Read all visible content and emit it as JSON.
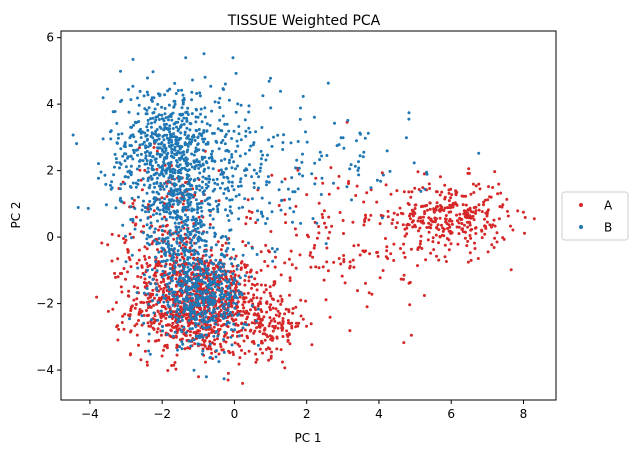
{
  "chart_data": {
    "type": "scatter",
    "title": "TISSUE Weighted PCA",
    "xlabel": "PC 1",
    "ylabel": "PC 2",
    "xlim": [
      -4.8,
      8.9
    ],
    "ylim": [
      -4.9,
      6.2
    ],
    "xticks": [
      -4,
      -2,
      0,
      2,
      4,
      6,
      8
    ],
    "yticks": [
      -4,
      -2,
      0,
      2,
      4,
      6
    ],
    "xtick_labels": [
      "−4",
      "−2",
      "0",
      "2",
      "4",
      "6",
      "8"
    ],
    "ytick_labels": [
      "−4",
      "−2",
      "0",
      "2",
      "4",
      "6"
    ],
    "grid": false,
    "legend_position": "right-outside",
    "series": [
      {
        "name": "A",
        "color": "#d62728",
        "clusters": [
          {
            "cx": -1.0,
            "cy": -2.0,
            "sx": 0.9,
            "sy": 0.8,
            "n": 1000
          },
          {
            "cx": -1.8,
            "cy": 0.0,
            "sx": 0.7,
            "sy": 1.3,
            "n": 250
          },
          {
            "cx": 1.0,
            "cy": -2.6,
            "sx": 0.5,
            "sy": 0.5,
            "n": 150
          },
          {
            "cx": 6.0,
            "cy": 0.6,
            "sx": 0.8,
            "sy": 0.55,
            "n": 330
          },
          {
            "cx": 3.0,
            "cy": 0.0,
            "sx": 1.3,
            "sy": 1.2,
            "n": 160
          }
        ]
      },
      {
        "name": "B",
        "color": "#1f77b4",
        "clusters": [
          {
            "cx": -1.9,
            "cy": 2.6,
            "sx": 0.8,
            "sy": 1.0,
            "n": 600
          },
          {
            "cx": -1.5,
            "cy": 0.5,
            "sx": 0.6,
            "sy": 1.2,
            "n": 450
          },
          {
            "cx": -0.9,
            "cy": -1.8,
            "sx": 0.6,
            "sy": 0.7,
            "n": 500
          },
          {
            "cx": 0.0,
            "cy": 2.0,
            "sx": 0.9,
            "sy": 1.4,
            "n": 200
          },
          {
            "cx": 2.8,
            "cy": 2.2,
            "sx": 1.3,
            "sy": 0.9,
            "n": 80
          }
        ]
      }
    ]
  }
}
